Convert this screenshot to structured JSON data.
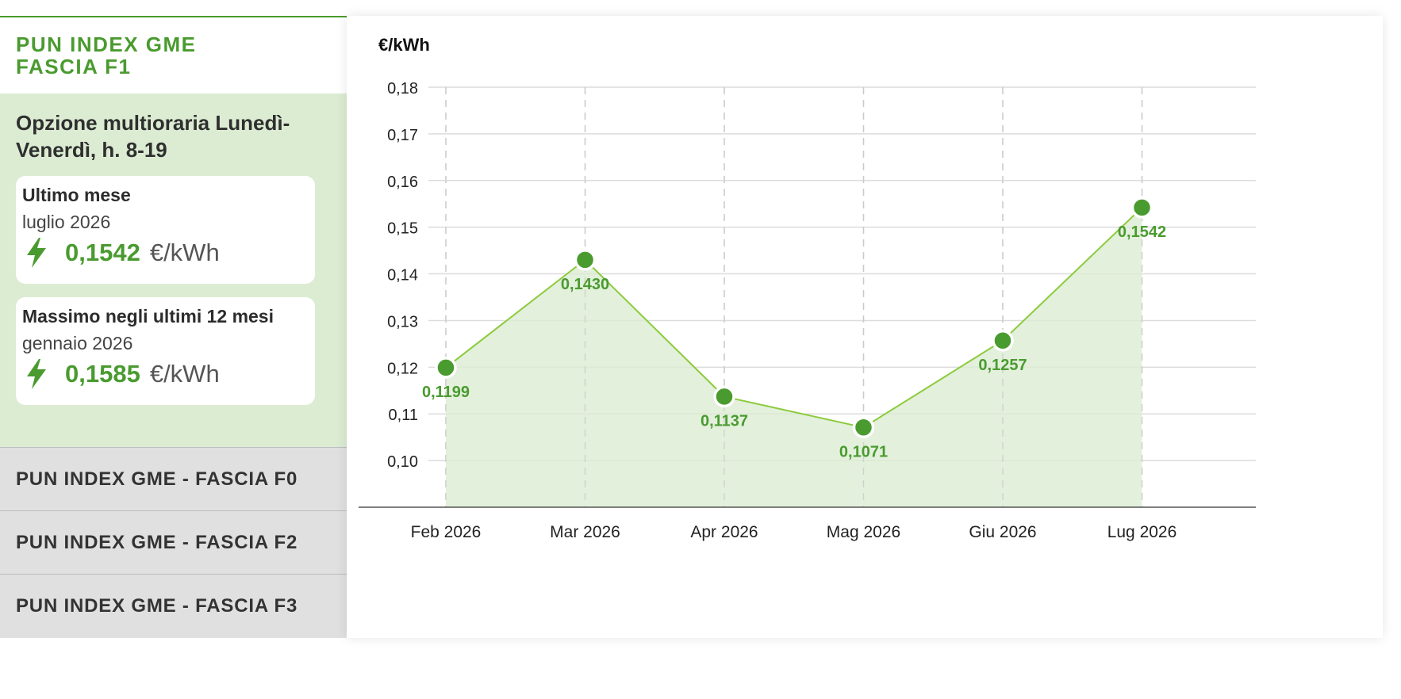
{
  "sidebar": {
    "active": {
      "title": "PUN INDEX GME FASCIA F1",
      "option": "Opzione multioraria Lunedì-Venerdì, h. 8-19",
      "cards": [
        {
          "title": "Ultimo mese",
          "period": "luglio 2026",
          "value": "0,1542",
          "unit": "€/kWh",
          "icon": "lightning-bolt-icon"
        },
        {
          "title": "Massimo negli ultimi 12 mesi",
          "period": "gennaio 2026",
          "value": "0,1585",
          "unit": "€/kWh",
          "icon": "lightning-bolt-icon"
        }
      ]
    },
    "items": [
      {
        "label": "PUN INDEX GME - FASCIA F0"
      },
      {
        "label": "PUN INDEX GME - FASCIA F2"
      },
      {
        "label": "PUN INDEX GME - FASCIA F3"
      }
    ]
  },
  "colors": {
    "accent": "#4a9b2f",
    "line": "#8ccb3c",
    "area": "#dcecd3",
    "panel_bg": "#dcecd3",
    "inactive_bg": "#e0e0e0"
  },
  "chart_data": {
    "type": "area",
    "ylabel": "€/kWh",
    "categories": [
      "Feb 2026",
      "Mar 2026",
      "Apr 2026",
      "Mag 2026",
      "Giu 2026",
      "Lug 2026"
    ],
    "values": [
      0.1199,
      0.143,
      0.1137,
      0.1071,
      0.1257,
      0.1542
    ],
    "data_labels": [
      "0,1199",
      "0,1430",
      "0,1137",
      "0,1071",
      "0,1257",
      "0,1542"
    ],
    "yticks": [
      0.1,
      0.11,
      0.12,
      0.13,
      0.14,
      0.15,
      0.16,
      0.17,
      0.18
    ],
    "ytick_labels": [
      "0,10",
      "0,11",
      "0,12",
      "0,13",
      "0,14",
      "0,15",
      "0,16",
      "0,17",
      "0,18"
    ],
    "ylim": [
      0.09,
      0.18
    ],
    "grid": true,
    "legend": false
  }
}
